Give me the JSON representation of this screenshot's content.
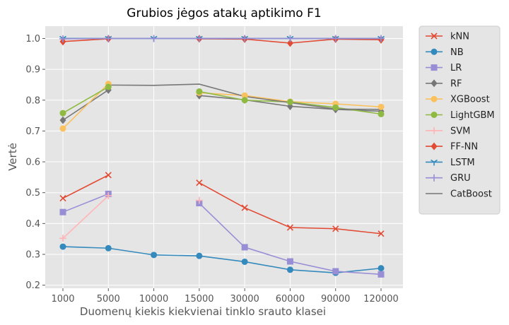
{
  "chart_data": {
    "type": "line",
    "title": "Grubios jėgos atakų aptikimo F1",
    "xlabel": "Duomenų kiekis kiekvienai tinklo srauto klasei",
    "ylabel": "Vertė",
    "categories": [
      "1000",
      "5000",
      "10000",
      "15000",
      "30000",
      "60000",
      "90000",
      "120000"
    ],
    "ylim": [
      0.19,
      1.04
    ],
    "yticks": [
      "0.2",
      "0.3",
      "0.4",
      "0.5",
      "0.6",
      "0.7",
      "0.8",
      "0.9",
      "1.0"
    ],
    "grid": true,
    "legend_position": "outside-right",
    "series": [
      {
        "name": "kNN",
        "color": "#E24A33",
        "marker": "x",
        "values": [
          0.482,
          0.557,
          null,
          0.532,
          0.451,
          0.387,
          0.383,
          0.367
        ]
      },
      {
        "name": "NB",
        "color": "#348ABD",
        "marker": "circle",
        "values": [
          0.325,
          0.32,
          0.298,
          0.295,
          0.276,
          0.25,
          0.24,
          0.255
        ]
      },
      {
        "name": "LR",
        "color": "#988ED5",
        "marker": "square",
        "values": [
          0.437,
          0.496,
          null,
          0.466,
          0.323,
          0.277,
          0.245,
          0.235
        ]
      },
      {
        "name": "RF",
        "color": "#777777",
        "marker": "diamond",
        "values": [
          0.735,
          0.833,
          null,
          0.815,
          0.801,
          0.78,
          0.77,
          0.764
        ]
      },
      {
        "name": "XGBoost",
        "color": "#FBC15E",
        "marker": "circle",
        "values": [
          0.708,
          0.853,
          null,
          0.824,
          0.815,
          0.795,
          0.788,
          0.778
        ]
      },
      {
        "name": "LightGBM",
        "color": "#8EBA42",
        "marker": "circle",
        "values": [
          0.758,
          0.843,
          null,
          0.828,
          0.8,
          0.794,
          0.776,
          0.755
        ]
      },
      {
        "name": "SVM",
        "color": "#FFB5B8",
        "marker": "plus",
        "values": [
          0.352,
          0.49,
          null,
          0.475,
          null,
          null,
          null,
          null
        ]
      },
      {
        "name": "FF-NN",
        "color": "#E24A33",
        "marker": "diamond",
        "values": [
          0.99,
          0.999,
          null,
          0.999,
          0.998,
          0.985,
          0.998,
          0.996
        ]
      },
      {
        "name": "LSTM",
        "color": "#348ABD",
        "marker": "tri",
        "values": [
          1.0,
          1.0,
          1.0,
          1.0,
          1.0,
          1.0,
          1.0,
          1.0
        ]
      },
      {
        "name": "GRU",
        "color": "#988ED5",
        "marker": "plus",
        "values": [
          0.999,
          1.0,
          1.0,
          1.0,
          1.0,
          1.0,
          1.0,
          1.0
        ]
      },
      {
        "name": "CatBoost",
        "color": "#777777",
        "marker": "none",
        "values": [
          null,
          0.849,
          0.848,
          0.852,
          0.812,
          0.792,
          0.771,
          0.77
        ]
      }
    ]
  }
}
